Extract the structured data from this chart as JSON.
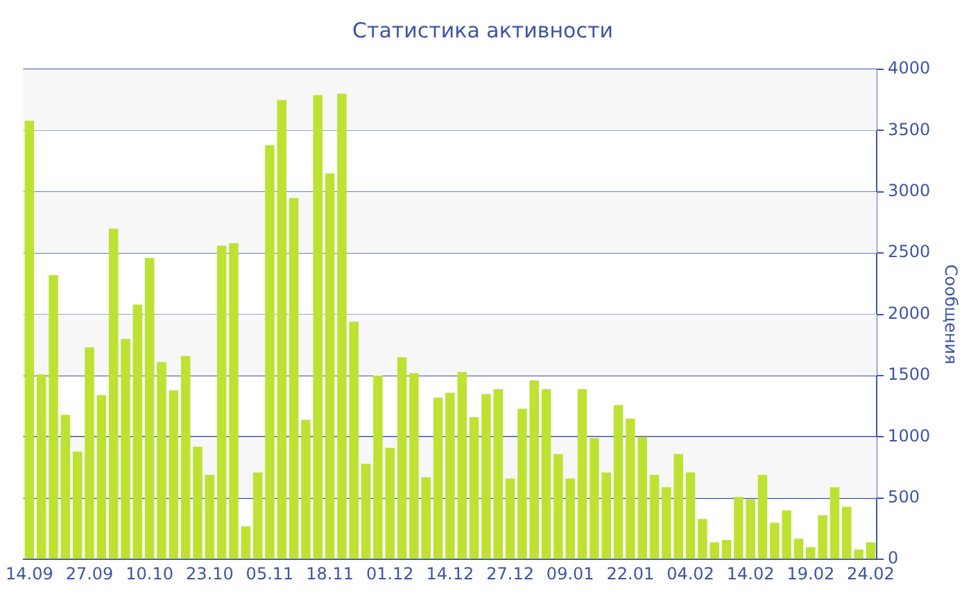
{
  "chart_data": {
    "type": "bar",
    "title": "Статистика активности",
    "ylabel": "Сообщения",
    "categories": [
      "14.09",
      null,
      null,
      null,
      null,
      "27.09",
      null,
      null,
      null,
      null,
      "10.10",
      null,
      null,
      null,
      null,
      "23.10",
      null,
      null,
      null,
      null,
      "05.11",
      null,
      null,
      null,
      null,
      "18.11",
      null,
      null,
      null,
      null,
      "01.12",
      null,
      null,
      null,
      null,
      "14.12",
      null,
      null,
      null,
      null,
      "27.12",
      null,
      null,
      null,
      null,
      "09.01",
      null,
      null,
      null,
      null,
      "22.01",
      null,
      null,
      null,
      null,
      "04.02",
      null,
      null,
      null,
      null,
      "14.02",
      null,
      null,
      null,
      null,
      "19.02",
      null,
      null,
      null,
      null,
      "24.02"
    ],
    "values": [
      3580,
      1510,
      2320,
      1180,
      880,
      1730,
      1340,
      2700,
      1800,
      2080,
      2460,
      1610,
      1380,
      1660,
      920,
      690,
      2560,
      2580,
      270,
      710,
      3380,
      3750,
      2950,
      1140,
      3790,
      3150,
      3800,
      1940,
      780,
      1500,
      910,
      1650,
      1520,
      670,
      1320,
      1360,
      1530,
      1160,
      1350,
      1390,
      660,
      1230,
      1460,
      1390,
      860,
      660,
      1390,
      990,
      710,
      1260,
      1150,
      1000,
      690,
      590,
      860,
      710,
      330,
      140,
      160,
      510,
      490,
      690,
      300,
      400,
      170,
      100,
      360,
      590,
      430,
      80,
      140
    ],
    "color": "#bde232",
    "ylim": [
      0,
      4000
    ],
    "yticks": [
      0,
      500,
      1000,
      1500,
      2000,
      2500,
      3000,
      3500,
      4000
    ],
    "grid": true
  }
}
